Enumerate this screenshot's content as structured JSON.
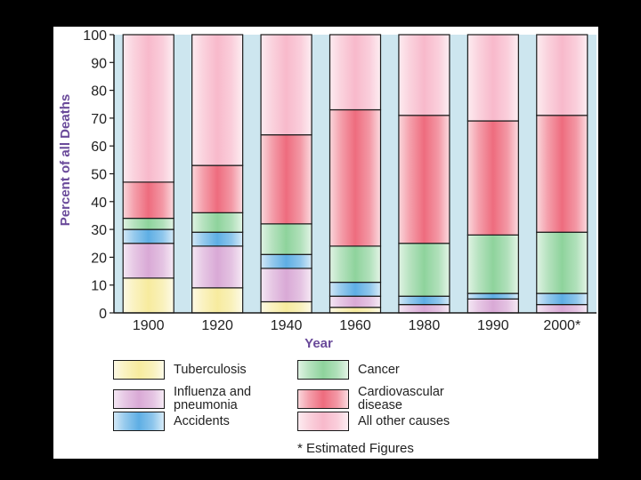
{
  "chart_data": {
    "type": "bar",
    "stacked": true,
    "normalized": true,
    "title": "",
    "xlabel": "Year",
    "ylabel": "Percent of all Deaths",
    "ylim": [
      0,
      100
    ],
    "yticks": [
      "0",
      "10",
      "20",
      "30",
      "40",
      "50",
      "60",
      "70",
      "80",
      "90",
      "100"
    ],
    "categories": [
      "1900",
      "1920",
      "1940",
      "1960",
      "1980",
      "1990",
      "2000*"
    ],
    "series": [
      {
        "name": "Tuberculosis",
        "color": "#f7eb9e",
        "values": [
          12.5,
          9,
          4,
          2,
          0,
          0,
          0
        ]
      },
      {
        "name": "Influenza and pneumonia",
        "color": "#d9a9d6",
        "values": [
          12.5,
          15,
          12,
          4,
          3,
          5,
          3
        ]
      },
      {
        "name": "Accidents",
        "color": "#5eaee4",
        "values": [
          5,
          5,
          5,
          5,
          3,
          2,
          4
        ]
      },
      {
        "name": "Cancer",
        "color": "#8ed39c",
        "values": [
          4,
          7,
          11,
          13,
          19,
          21,
          22
        ]
      },
      {
        "name": "Cardiovascular disease",
        "color": "#ee6c7e",
        "values": [
          13,
          17,
          32,
          49,
          46,
          41,
          42
        ]
      },
      {
        "name": "All other causes",
        "color": "#f8b9cb",
        "values": [
          53,
          47,
          36,
          27,
          29,
          31,
          29
        ]
      }
    ],
    "legend": [
      {
        "label": "Tuberculosis",
        "series": 0
      },
      {
        "label": "Influenza and\npneumonia",
        "series": 1
      },
      {
        "label": "Accidents",
        "series": 2
      },
      {
        "label": "Cancer",
        "series": 3
      },
      {
        "label": "Cardiovascular\ndisease",
        "series": 4
      },
      {
        "label": "All other causes",
        "series": 5
      }
    ],
    "legend_position": "bottom",
    "footnote": "* Estimated Figures"
  },
  "colors": {
    "background_band": "#cde6ef",
    "axis": "#1a1a1a",
    "xlabel_color": "#6a4a9a",
    "ylabel_color": "#6a4a9a"
  }
}
